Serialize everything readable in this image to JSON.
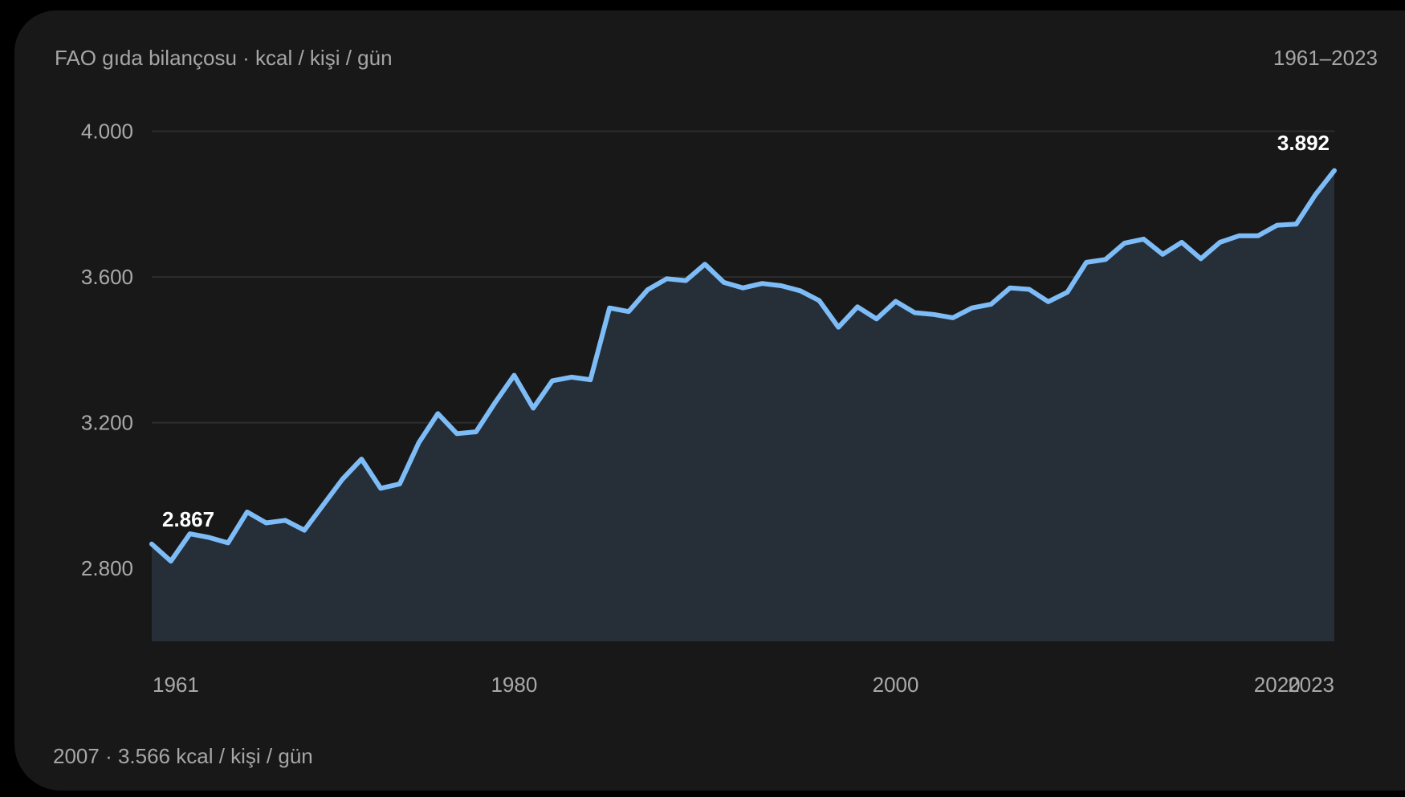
{
  "header": {
    "title": "FAO gıda bilançosu · kcal / kişi / gün",
    "range": "1961–2023"
  },
  "footer": {
    "text": "2007 · 3.566 kcal / kişi / gün"
  },
  "colors": {
    "background": "#181818",
    "line": "#7dbcf6",
    "area": "#262e38",
    "grid": "#2d2d2d"
  },
  "chart_data": {
    "type": "area",
    "title": "",
    "xlabel": "",
    "ylabel": "",
    "ylim": [
      2600,
      4000
    ],
    "xlim": [
      1961,
      2023
    ],
    "grid": true,
    "yticks": [
      {
        "value": 2800,
        "label": "2.800"
      },
      {
        "value": 3200,
        "label": "3.200"
      },
      {
        "value": 3600,
        "label": "3.600"
      },
      {
        "value": 4000,
        "label": "4.000"
      }
    ],
    "xticks": [
      {
        "value": 1961,
        "label": "1961"
      },
      {
        "value": 1980,
        "label": "1980"
      },
      {
        "value": 2000,
        "label": "2000"
      },
      {
        "value": 2020,
        "label": "2020"
      },
      {
        "value": 2023,
        "label": "2023"
      }
    ],
    "annotations": [
      {
        "x": 1961,
        "y": 2867,
        "label": "2.867"
      },
      {
        "x": 2023,
        "y": 3892,
        "label": "3.892"
      }
    ],
    "series": [
      {
        "x": [
          1961,
          1962,
          1963,
          1964,
          1965,
          1966,
          1967,
          1968,
          1969,
          1970,
          1971,
          1972,
          1973,
          1974,
          1975,
          1976,
          1977,
          1978,
          1979,
          1980,
          1981,
          1982,
          1983,
          1984,
          1985,
          1986,
          1987,
          1988,
          1989,
          1990,
          1991,
          1992,
          1993,
          1994,
          1995,
          1996,
          1997,
          1998,
          1999,
          2000,
          2001,
          2002,
          2003,
          2004,
          2005,
          2006,
          2007,
          2008,
          2009,
          2010,
          2011,
          2012,
          2013,
          2014,
          2015,
          2016,
          2017,
          2018,
          2019,
          2020,
          2021,
          2022,
          2023
        ],
        "values": [
          2867,
          2820,
          2895,
          2885,
          2870,
          2955,
          2925,
          2932,
          2905,
          2975,
          3045,
          3100,
          3020,
          3032,
          3145,
          3225,
          3170,
          3175,
          3255,
          3330,
          3240,
          3315,
          3325,
          3318,
          3515,
          3505,
          3565,
          3595,
          3590,
          3635,
          3585,
          3570,
          3582,
          3576,
          3562,
          3535,
          3462,
          3518,
          3485,
          3533,
          3502,
          3497,
          3488,
          3515,
          3525,
          3570,
          3566,
          3532,
          3558,
          3640,
          3648,
          3693,
          3704,
          3662,
          3695,
          3650,
          3695,
          3713,
          3713,
          3742,
          3745,
          3825,
          3892
        ]
      }
    ]
  }
}
